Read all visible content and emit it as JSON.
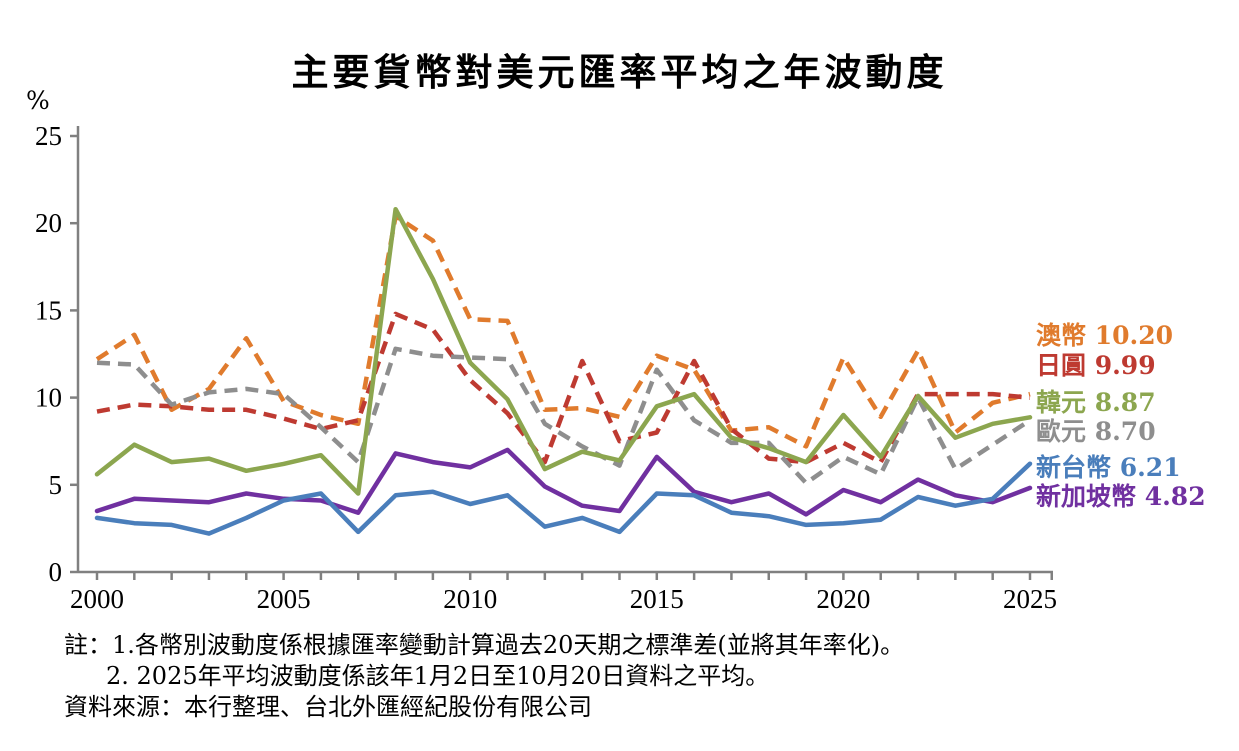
{
  "title": "主要貨幣對美元匯率平均之年波動度",
  "y_axis_unit": "%",
  "notes": {
    "line1": "註：1.各幣別波動度係根據匯率變動計算過去20天期之標準差(並將其年率化)。",
    "line2": "2. 2025年平均波動度係該年1月2日至10月20日資料之平均。",
    "line3": "資料來源：本行整理、台北外匯經紀股份有限公司"
  },
  "legend": [
    {
      "id": "aud",
      "label": "澳幣",
      "value": "10.20",
      "color": "#E07B2D"
    },
    {
      "id": "jpy",
      "label": "日圓",
      "value": "9.99",
      "color": "#BE3A31"
    },
    {
      "id": "krw",
      "label": "韓元",
      "value": "8.87",
      "color": "#8CA64F"
    },
    {
      "id": "eur",
      "label": "歐元",
      "value": "8.70",
      "color": "#8E8E8E"
    },
    {
      "id": "twd",
      "label": "新台幣",
      "value": "6.21",
      "color": "#4A7EBB"
    },
    {
      "id": "sgd",
      "label": "新加坡幣",
      "value": "4.82",
      "color": "#7030A0"
    }
  ],
  "chart_data": {
    "type": "line",
    "title": "主要貨幣對美元匯率平均之年波動度",
    "xlabel": "",
    "ylabel": "%",
    "ylim": [
      0,
      25
    ],
    "y_ticks": [
      0,
      5,
      10,
      15,
      20,
      25
    ],
    "x": [
      2000,
      2001,
      2002,
      2003,
      2004,
      2005,
      2006,
      2007,
      2008,
      2009,
      2010,
      2011,
      2012,
      2013,
      2014,
      2015,
      2016,
      2017,
      2018,
      2019,
      2020,
      2021,
      2022,
      2023,
      2024,
      2025
    ],
    "x_tick_labels": [
      "2000",
      "2005",
      "2010",
      "2015",
      "2020",
      "2025"
    ],
    "grid": false,
    "legend_position": "right",
    "series": [
      {
        "id": "aud",
        "name": "澳幣 (AUD)",
        "color": "#E07B2D",
        "style": "dashed",
        "final_value": 10.2,
        "values": [
          12.2,
          13.6,
          9.3,
          10.5,
          13.4,
          9.8,
          9.0,
          8.5,
          20.4,
          19.0,
          14.5,
          14.4,
          9.3,
          9.4,
          8.9,
          12.4,
          11.6,
          8.1,
          8.3,
          7.2,
          12.3,
          8.9,
          12.7,
          8.0,
          9.7,
          10.2
        ]
      },
      {
        "id": "jpy",
        "name": "日圓 (JPY)",
        "color": "#BE3A31",
        "style": "dashed",
        "final_value": 9.99,
        "values": [
          9.2,
          9.6,
          9.5,
          9.3,
          9.3,
          8.8,
          8.2,
          8.7,
          14.8,
          13.9,
          11.0,
          9.1,
          6.3,
          12.1,
          7.5,
          8.0,
          12.1,
          8.2,
          6.5,
          6.3,
          7.4,
          6.3,
          10.2,
          10.2,
          10.2,
          9.99
        ]
      },
      {
        "id": "eur",
        "name": "歐元 (EUR)",
        "color": "#8E8E8E",
        "style": "dashed",
        "final_value": 8.7,
        "values": [
          12.0,
          11.9,
          9.6,
          10.3,
          10.5,
          10.2,
          8.3,
          6.3,
          12.8,
          12.4,
          12.3,
          12.2,
          8.5,
          7.2,
          6.1,
          11.6,
          8.7,
          7.4,
          7.4,
          5.1,
          6.6,
          5.6,
          10.0,
          5.9,
          7.3,
          8.7
        ]
      },
      {
        "id": "krw",
        "name": "韓元 (KRW)",
        "color": "#8CA64F",
        "style": "solid",
        "final_value": 8.87,
        "values": [
          5.6,
          7.3,
          6.3,
          6.5,
          5.8,
          6.2,
          6.7,
          4.5,
          20.8,
          16.8,
          12.0,
          9.9,
          5.9,
          6.9,
          6.4,
          9.5,
          10.2,
          7.7,
          7.1,
          6.3,
          9.0,
          6.6,
          10.1,
          7.7,
          8.5,
          8.87
        ]
      },
      {
        "id": "sgd",
        "name": "新加坡幣 (SGD)",
        "color": "#7030A0",
        "style": "solid",
        "final_value": 4.82,
        "values": [
          3.5,
          4.2,
          4.1,
          4.0,
          4.5,
          4.2,
          4.1,
          3.4,
          6.8,
          6.3,
          6.0,
          7.0,
          4.9,
          3.8,
          3.5,
          6.6,
          4.6,
          4.0,
          4.5,
          3.3,
          4.7,
          4.0,
          5.3,
          4.4,
          4.0,
          4.82
        ]
      },
      {
        "id": "twd",
        "name": "新台幣 (TWD)",
        "color": "#4A7EBB",
        "style": "solid",
        "final_value": 6.21,
        "values": [
          3.1,
          2.8,
          2.7,
          2.2,
          3.1,
          4.1,
          4.5,
          2.3,
          4.4,
          4.6,
          3.9,
          4.4,
          2.6,
          3.1,
          2.3,
          4.5,
          4.4,
          3.4,
          3.2,
          2.7,
          2.8,
          3.0,
          4.3,
          3.8,
          4.2,
          6.21
        ]
      }
    ]
  }
}
